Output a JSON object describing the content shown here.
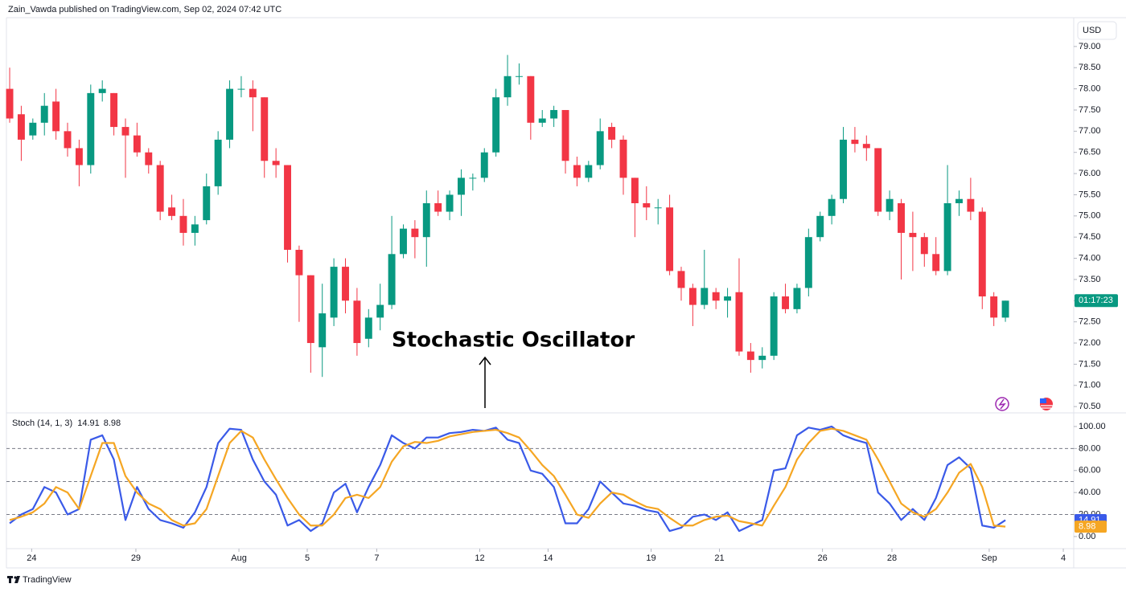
{
  "header": "Zain_Vawda published on TradingView.com, Sep 02, 2024 07:42 UTC",
  "footer": "TradingView",
  "chart_data": [
    {
      "type": "candlestick",
      "currency": "USD",
      "countdown": "01:17:23",
      "annotation": "Stochastic Oscillator",
      "up_color": "#089981",
      "down_color": "#f23645",
      "countdown_color": "#089981",
      "xlim": [
        -0.28,
        91.9
      ],
      "ylim": [
        70.37,
        79.68
      ],
      "yticks": [
        {
          "value": 70.5,
          "label": "70.50"
        },
        {
          "value": 71,
          "label": "71.00"
        },
        {
          "value": 71.5,
          "label": "71.50"
        },
        {
          "value": 72,
          "label": "72.00"
        },
        {
          "value": 72.5,
          "label": "72.50"
        },
        {
          "value": 73,
          "label": "73.00"
        },
        {
          "value": 73.5,
          "label": "73.50"
        },
        {
          "value": 74,
          "label": "74.00"
        },
        {
          "value": 74.5,
          "label": "74.50"
        },
        {
          "value": 75,
          "label": "75.00"
        },
        {
          "value": 75.5,
          "label": "75.50"
        },
        {
          "value": 76,
          "label": "76.00"
        },
        {
          "value": 76.5,
          "label": "76.50"
        },
        {
          "value": 77,
          "label": "77.00"
        },
        {
          "value": 77.5,
          "label": "77.50"
        },
        {
          "value": 78,
          "label": "78.00"
        },
        {
          "value": 78.5,
          "label": "78.50"
        },
        {
          "value": 79,
          "label": "79.00"
        }
      ],
      "grid": false,
      "open": [
        78.0,
        77.4,
        76.9,
        77.2,
        77.7,
        77.0,
        76.6,
        76.2,
        77.9,
        77.9,
        77.1,
        76.9,
        76.5,
        76.2,
        75.2,
        75.0,
        74.6,
        74.9,
        75.7,
        76.8,
        78.0,
        78.0,
        77.8,
        76.3,
        76.2,
        74.2,
        73.6,
        71.9,
        72.6,
        73.8,
        73.0,
        72.1,
        72.6,
        72.9,
        74.1,
        74.7,
        74.5,
        75.3,
        75.1,
        75.5,
        75.9,
        75.9,
        76.5,
        77.8,
        78.3,
        78.3,
        77.2,
        77.3,
        77.5,
        76.2,
        75.9,
        76.2,
        77.1,
        76.8,
        75.9,
        75.3,
        75.2,
        75.2,
        73.7,
        73.3,
        72.9,
        73.2,
        73.0,
        73.2,
        71.8,
        71.6,
        71.7,
        73.1,
        72.8,
        73.3,
        74.5,
        75.0,
        75.4,
        76.8,
        76.7,
        76.6,
        75.1,
        75.3,
        74.6,
        74.5,
        74.1,
        73.7,
        75.3,
        75.4,
        75.1,
        73.1,
        72.6
      ],
      "high": [
        78.5,
        77.6,
        77.3,
        77.9,
        78.0,
        77.2,
        76.8,
        78.1,
        78.2,
        77.9,
        77.3,
        77.2,
        76.6,
        76.3,
        75.5,
        75.4,
        75.0,
        76.0,
        77.0,
        78.2,
        78.3,
        78.2,
        77.8,
        76.6,
        76.2,
        74.3,
        73.6,
        73.4,
        74.0,
        74.0,
        73.3,
        72.8,
        73.4,
        75.0,
        74.8,
        74.9,
        75.6,
        75.6,
        75.6,
        76.1,
        76.0,
        76.6,
        78.0,
        78.8,
        78.6,
        78.3,
        77.5,
        77.6,
        77.5,
        76.4,
        76.3,
        77.3,
        77.2,
        76.9,
        75.9,
        75.7,
        75.4,
        75.5,
        73.8,
        73.4,
        74.2,
        73.3,
        73.3,
        74.0,
        72.0,
        71.9,
        73.2,
        73.4,
        73.4,
        74.7,
        75.1,
        75.5,
        77.1,
        77.1,
        76.9,
        76.6,
        75.6,
        75.4,
        75.1,
        74.6,
        74.5,
        76.2,
        75.6,
        75.9,
        75.2,
        73.2,
        73.0
      ],
      "low": [
        77.2,
        76.3,
        76.8,
        76.9,
        76.8,
        76.4,
        75.7,
        76.0,
        77.7,
        76.9,
        75.9,
        76.4,
        76.0,
        74.9,
        74.9,
        74.3,
        74.3,
        74.8,
        75.5,
        76.6,
        77.8,
        77.0,
        75.9,
        75.9,
        73.9,
        72.5,
        71.3,
        71.2,
        72.4,
        72.7,
        71.7,
        71.9,
        72.3,
        72.8,
        74.0,
        74.0,
        73.8,
        75.0,
        74.9,
        75.0,
        75.6,
        75.8,
        76.4,
        77.6,
        78.1,
        76.8,
        77.1,
        77.1,
        76.0,
        75.7,
        75.8,
        76.1,
        76.6,
        75.5,
        74.5,
        74.9,
        74.8,
        73.6,
        73.0,
        72.4,
        72.8,
        72.8,
        72.6,
        71.7,
        71.3,
        71.4,
        71.6,
        72.7,
        72.7,
        73.1,
        74.4,
        74.8,
        75.3,
        76.5,
        76.3,
        75.0,
        74.9,
        73.5,
        73.7,
        73.8,
        73.6,
        73.6,
        75.0,
        74.9,
        72.8,
        72.4,
        72.5
      ],
      "close": [
        77.3,
        76.8,
        77.2,
        77.6,
        77.0,
        76.6,
        76.2,
        77.9,
        78.0,
        77.1,
        76.9,
        76.5,
        76.2,
        75.1,
        75.0,
        74.6,
        74.8,
        75.7,
        76.8,
        78.0,
        78.0,
        77.8,
        76.3,
        76.2,
        74.2,
        73.6,
        72.0,
        72.7,
        73.8,
        73.0,
        72.0,
        72.6,
        72.9,
        74.1,
        74.7,
        74.5,
        75.3,
        75.1,
        75.5,
        75.9,
        75.9,
        76.5,
        77.8,
        78.3,
        78.3,
        77.2,
        77.3,
        77.5,
        76.3,
        75.9,
        76.2,
        77.0,
        76.8,
        75.9,
        75.3,
        75.2,
        75.2,
        73.7,
        73.3,
        72.9,
        73.3,
        73.0,
        73.1,
        71.8,
        71.6,
        71.7,
        73.1,
        72.8,
        73.3,
        74.5,
        75.0,
        75.4,
        76.8,
        76.7,
        76.6,
        75.1,
        75.4,
        74.6,
        74.5,
        74.1,
        73.7,
        75.3,
        75.4,
        75.1,
        73.1,
        72.6,
        73.0
      ]
    },
    {
      "type": "line",
      "title": "Stoch (14, 1, 3)",
      "xlim": [
        -0.28,
        91.9
      ],
      "ylim": [
        -11,
        112.4
      ],
      "xticks": [
        {
          "value": 1.9,
          "label": "24"
        },
        {
          "value": 10.9,
          "label": "29"
        },
        {
          "value": 19.8,
          "label": "Aug"
        },
        {
          "value": 25.7,
          "label": "5"
        },
        {
          "value": 31.7,
          "label": "7"
        },
        {
          "value": 40.6,
          "label": "12"
        },
        {
          "value": 46.5,
          "label": "14"
        },
        {
          "value": 55.4,
          "label": "19"
        },
        {
          "value": 61.3,
          "label": "21"
        },
        {
          "value": 70.2,
          "label": "26"
        },
        {
          "value": 76.2,
          "label": "28"
        },
        {
          "value": 84.6,
          "label": "Sep"
        },
        {
          "value": 91,
          "label": "4"
        }
      ],
      "yticks": [
        {
          "value": 0,
          "label": "0.00"
        },
        {
          "value": 20,
          "label": "20.00"
        },
        {
          "value": 40,
          "label": "40.00"
        },
        {
          "value": 60,
          "label": "60.00"
        },
        {
          "value": 80,
          "label": "80.00"
        },
        {
          "value": 100,
          "label": "100.00"
        }
      ],
      "bands": [
        80,
        50,
        20
      ],
      "series": [
        {
          "color": "#3a5ae8",
          "values": [
            12,
            20,
            25,
            45,
            40,
            20,
            25,
            88,
            92,
            70,
            15,
            45,
            25,
            15,
            12,
            8,
            22,
            45,
            85,
            98,
            97,
            70,
            50,
            38,
            10,
            15,
            5,
            12,
            40,
            48,
            22,
            45,
            65,
            92,
            85,
            80,
            90,
            90,
            94,
            95,
            97,
            96,
            99,
            88,
            85,
            60,
            57,
            45,
            12,
            12,
            25,
            50,
            40,
            30,
            28,
            24,
            22,
            5,
            8,
            18,
            20,
            15,
            22,
            5,
            10,
            15,
            60,
            62,
            92,
            99,
            97,
            100,
            92,
            88,
            85,
            40,
            30,
            15,
            25,
            15,
            35,
            65,
            72,
            62,
            10,
            8,
            14.91
          ]
        },
        {
          "color": "#f5a623",
          "values": [
            15,
            18,
            22,
            30,
            45,
            40,
            25,
            55,
            85,
            85,
            55,
            40,
            30,
            25,
            15,
            10,
            12,
            25,
            55,
            85,
            96,
            90,
            70,
            52,
            35,
            20,
            10,
            10,
            20,
            35,
            38,
            35,
            45,
            68,
            82,
            86,
            85,
            87,
            91,
            93,
            95,
            96,
            97,
            94,
            90,
            78,
            65,
            55,
            38,
            20,
            17,
            30,
            40,
            38,
            32,
            27,
            25,
            17,
            10,
            10,
            15,
            18,
            19,
            14,
            12,
            10,
            28,
            45,
            70,
            85,
            96,
            98,
            96,
            92,
            88,
            70,
            50,
            30,
            22,
            18,
            25,
            40,
            58,
            66,
            45,
            10,
            8.98
          ]
        }
      ]
    }
  ]
}
